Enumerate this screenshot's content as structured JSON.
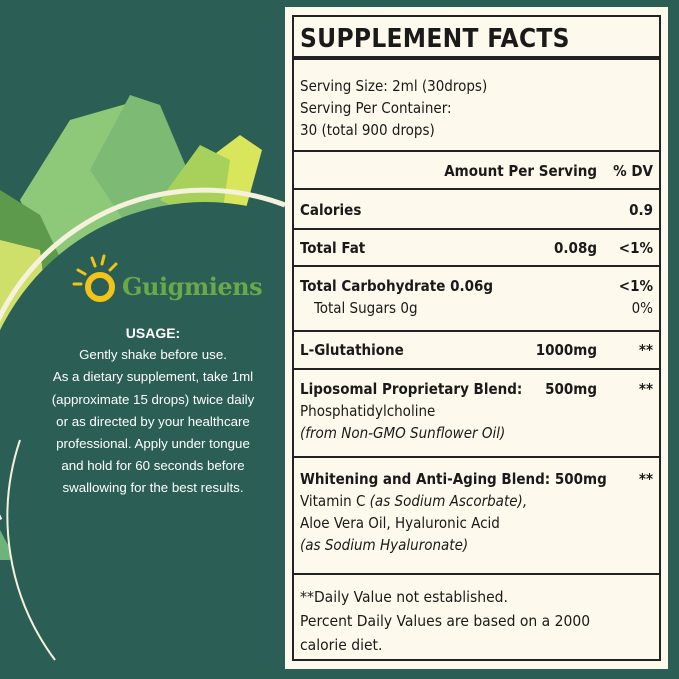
{
  "brand": {
    "name": "Guigmiens"
  },
  "usage": {
    "heading": "USAGE:",
    "lines": [
      "Gently shake before use.",
      "As a dietary supplement, take 1ml",
      "(approximate 15 drops) twice daily",
      "or as directed by your healthcare",
      "professional. Apply under tongue",
      "and hold for 60 seconds before",
      "swallowing for the best results."
    ]
  },
  "facts": {
    "title": "SUPPLEMENT FACTS",
    "serving_size": "Serving Size: 2ml (30drops)",
    "serving_per_container": "Serving Per Container:",
    "servings": "30 (total 900 drops)",
    "header_amount": "Amount  Per Serving",
    "header_dv": "% DV",
    "calories": {
      "label": "Calories",
      "dv": "0.9"
    },
    "fat": {
      "label": "Total Fat",
      "amount": "0.08g",
      "dv": "<1%"
    },
    "carb": {
      "label": "Total Carbohydrate 0.06g",
      "dv": "<1%"
    },
    "sugars": {
      "label": "Total Sugars 0g",
      "dv": "0%"
    },
    "glutathione": {
      "label": "L-Glutathione",
      "amount": "1000mg",
      "dv": "**"
    },
    "liposomal": {
      "label": "Liposomal Proprietary Blend:",
      "amount": "500mg",
      "dv": "**",
      "line1": "Phosphatidylcholine",
      "line2": "(from Non-GMO Sunflower Oil)"
    },
    "whitening": {
      "label": "Whitening and Anti-Aging Blend: 500mg",
      "dv": "**",
      "line1a": "Vitamin C ",
      "line1b": "(as Sodium Ascorbate),",
      "line2": "Aloe Vera Oil, Hyaluronic Acid",
      "line3": "(as Sodium Hyaluronate)"
    },
    "footer": {
      "line1": "**Daily Value not established.",
      "line2": "Percent Daily Values are based on a 2000",
      "line3": "calorie diet."
    }
  },
  "colors": {
    "background": "#2b5e55",
    "panel": "#fdf9ec",
    "logo_yellow": "#f2c318",
    "logo_green": "#6aa84a"
  }
}
